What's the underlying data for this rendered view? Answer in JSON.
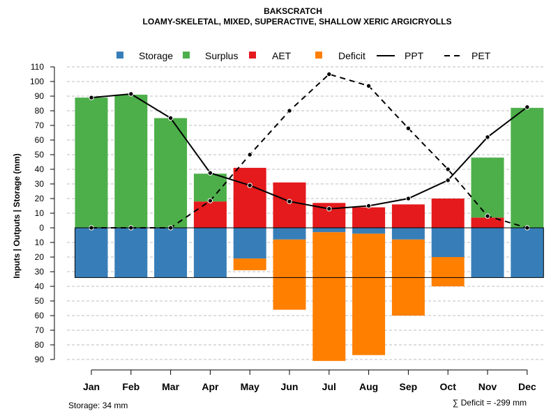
{
  "chart_data": {
    "type": "bar",
    "title": "BAKSCRATCH",
    "subtitle": "LOAMY-SKELETAL, MIXED, SUPERACTIVE, SHALLOW XERIC ARGICRYOLLS",
    "ylabel": "Inputs | Outputs | Storage    (mm)",
    "ylim": [
      -90,
      110
    ],
    "yticks_pos": [
      "110",
      "100",
      "90",
      "80",
      "70",
      "60",
      "50",
      "40",
      "30",
      "20",
      "10",
      "0"
    ],
    "yticks_neg": [
      "10",
      "20",
      "30",
      "40",
      "50",
      "60",
      "70",
      "80",
      "90"
    ],
    "categories": [
      "Jan",
      "Feb",
      "Mar",
      "Apr",
      "May",
      "Jun",
      "Jul",
      "Aug",
      "Sep",
      "Oct",
      "Nov",
      "Dec"
    ],
    "legend": [
      "Storage",
      "Surplus",
      "AET",
      "Deficit",
      "PPT",
      "PET"
    ],
    "colors": {
      "storage": "#377eb8",
      "surplus": "#4daf4a",
      "aet": "#e41a1c",
      "deficit": "#ff7f00",
      "line": "#000000",
      "grid": "#bebebe"
    },
    "series": [
      {
        "name": "Storage",
        "values": [
          -34,
          -34,
          -34,
          -34,
          -21,
          -8,
          -3,
          -4,
          -8,
          -20,
          -34,
          -34
        ]
      },
      {
        "name": "Deficit",
        "values": [
          0,
          0,
          0,
          0,
          -8,
          -48,
          -88,
          -83,
          -52,
          -20,
          0,
          0
        ]
      },
      {
        "name": "AET",
        "values": [
          0,
          0,
          0,
          18,
          41,
          31,
          17,
          14,
          16,
          20,
          7,
          0
        ]
      },
      {
        "name": "Surplus",
        "values": [
          89,
          91,
          75,
          19,
          0,
          0,
          0,
          0,
          0,
          0,
          41,
          82
        ]
      },
      {
        "name": "PPT",
        "values": [
          89,
          91.5,
          75,
          37.5,
          29,
          18,
          13,
          15,
          20,
          32.5,
          62,
          82.5
        ]
      },
      {
        "name": "PET",
        "values": [
          0,
          0,
          0,
          18.5,
          50,
          80,
          105,
          97,
          68,
          40,
          8,
          0
        ]
      }
    ],
    "storage_capacity": 34
  },
  "footer": {
    "storage_note": "Storage: 34 mm",
    "deficit_sum": "∑ Deficit = -299 mm"
  }
}
